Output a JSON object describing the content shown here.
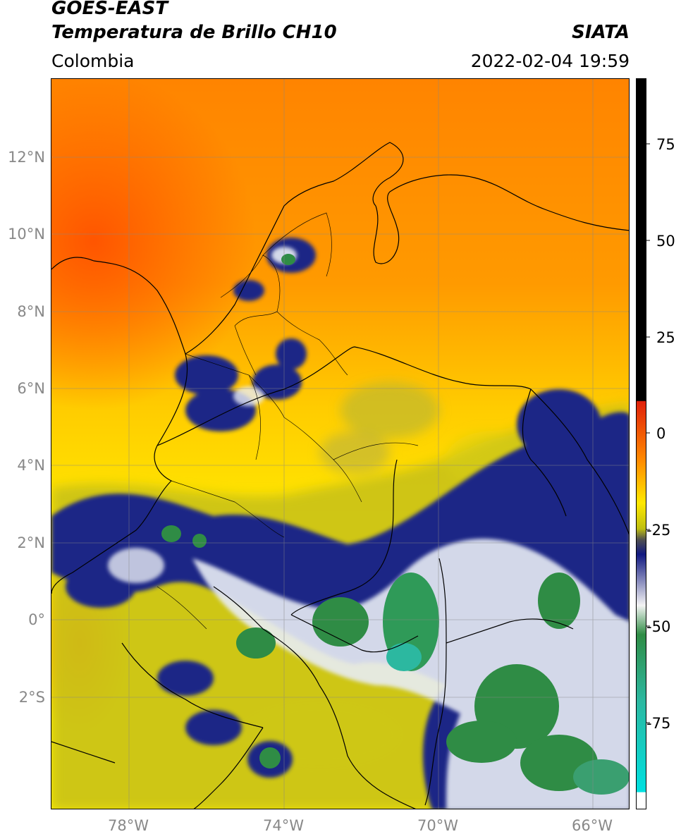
{
  "header": {
    "satellite": "GOES-EAST",
    "product": "Temperatura de Brillo CH10",
    "region": "Colombia",
    "agency": "SIATA",
    "datetime": "2022-02-04 19:59"
  },
  "map": {
    "lat_labels": [
      "12°N",
      "10°N",
      "8°N",
      "6°N",
      "4°N",
      "2°N",
      "0°",
      "2°S"
    ],
    "lon_labels": [
      "78°W",
      "74°W",
      "70°W",
      "66°W"
    ],
    "lat_range": [
      -4.9,
      14.0
    ],
    "lon_range": [
      -80.0,
      -65.0
    ],
    "gridlines": true
  },
  "colorbar": {
    "ticks": [
      "75",
      "50",
      "25",
      "0",
      "-25",
      "-50",
      "-75"
    ],
    "range": [
      -100,
      90
    ],
    "colors": {
      "warm": "#000000",
      "red": "#e0200a",
      "orange": "#ff8800",
      "yellow": "#ffe800",
      "olive": "#bfbf10",
      "navy": "#101880",
      "white": "#f4f4f4",
      "green": "#2f8c45",
      "teal": "#2cb8a0",
      "cyan": "#00e0e0"
    }
  }
}
